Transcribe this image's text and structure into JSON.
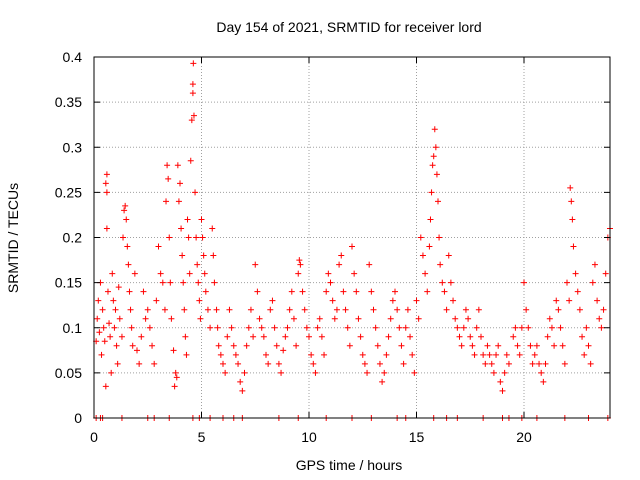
{
  "chart_data": {
    "type": "scatter",
    "title": "Day 154 of 2021, SRMTID for receiver lord",
    "xlabel": "GPS time / hours",
    "ylabel": "SRMTID / TECUs",
    "xlim": [
      0,
      24
    ],
    "ylim": [
      0,
      0.4
    ],
    "x_ticks": [
      0,
      5,
      10,
      15,
      20
    ],
    "x_tick_labels": [
      "0",
      "5",
      "10",
      "15",
      "20"
    ],
    "y_ticks": [
      0,
      0.05,
      0.1,
      0.15,
      0.2,
      0.25,
      0.3,
      0.35,
      0.4
    ],
    "y_tick_labels": [
      "0",
      "0.05",
      "0.1",
      "0.15",
      "0.2",
      "0.25",
      "0.3",
      "0.35",
      "0.4"
    ],
    "grid": true,
    "marker": "plus",
    "marker_color": "#ff0000",
    "series": [
      {
        "name": "SRMTID",
        "points": [
          [
            0.1,
            0.0
          ],
          [
            0.3,
            0.0
          ],
          [
            0.4,
            0.0
          ],
          [
            1.3,
            0.0
          ],
          [
            2.5,
            0.0
          ],
          [
            2.8,
            0.0
          ],
          [
            3.5,
            0.0
          ],
          [
            4.6,
            0.0
          ],
          [
            4.9,
            0.0
          ],
          [
            5.4,
            0.0
          ],
          [
            6.0,
            0.0
          ],
          [
            6.5,
            0.0
          ],
          [
            6.9,
            0.0
          ],
          [
            8.6,
            0.0
          ],
          [
            9.5,
            0.0
          ],
          [
            10.8,
            0.0
          ],
          [
            12.0,
            0.0
          ],
          [
            12.9,
            0.0
          ],
          [
            14.1,
            0.0
          ],
          [
            14.5,
            0.0
          ],
          [
            15.8,
            0.0
          ],
          [
            16.4,
            0.0
          ],
          [
            16.9,
            0.0
          ],
          [
            18.1,
            0.0
          ],
          [
            19.0,
            0.0
          ],
          [
            19.3,
            0.0
          ],
          [
            19.9,
            0.0
          ],
          [
            20.6,
            0.0
          ],
          [
            21.9,
            0.0
          ],
          [
            23.0,
            0.0
          ],
          [
            23.9,
            0.0
          ],
          [
            0.1,
            0.085
          ],
          [
            0.15,
            0.11
          ],
          [
            0.2,
            0.13
          ],
          [
            0.25,
            0.095
          ],
          [
            0.3,
            0.15
          ],
          [
            0.35,
            0.07
          ],
          [
            0.4,
            0.12
          ],
          [
            0.45,
            0.1
          ],
          [
            0.5,
            0.085
          ],
          [
            0.55,
            0.035
          ],
          [
            0.55,
            0.26
          ],
          [
            0.6,
            0.27
          ],
          [
            0.6,
            0.25
          ],
          [
            0.6,
            0.21
          ],
          [
            0.65,
            0.14
          ],
          [
            0.7,
            0.105
          ],
          [
            0.75,
            0.09
          ],
          [
            0.8,
            0.05
          ],
          [
            0.85,
            0.16
          ],
          [
            0.9,
            0.13
          ],
          [
            0.95,
            0.1
          ],
          [
            1.0,
            0.12
          ],
          [
            1.05,
            0.08
          ],
          [
            1.1,
            0.06
          ],
          [
            1.15,
            0.145
          ],
          [
            1.2,
            0.11
          ],
          [
            1.3,
            0.09
          ],
          [
            1.35,
            0.2
          ],
          [
            1.4,
            0.23
          ],
          [
            1.45,
            0.235
          ],
          [
            1.5,
            0.22
          ],
          [
            1.55,
            0.19
          ],
          [
            1.6,
            0.17
          ],
          [
            1.65,
            0.14
          ],
          [
            1.7,
            0.12
          ],
          [
            1.75,
            0.1
          ],
          [
            1.8,
            0.08
          ],
          [
            1.9,
            0.16
          ],
          [
            2.0,
            0.075
          ],
          [
            2.1,
            0.06
          ],
          [
            2.2,
            0.09
          ],
          [
            2.3,
            0.14
          ],
          [
            2.4,
            0.11
          ],
          [
            2.5,
            0.12
          ],
          [
            2.6,
            0.1
          ],
          [
            2.7,
            0.08
          ],
          [
            2.8,
            0.06
          ],
          [
            2.9,
            0.13
          ],
          [
            3.0,
            0.19
          ],
          [
            3.1,
            0.16
          ],
          [
            3.2,
            0.15
          ],
          [
            3.3,
            0.12
          ],
          [
            3.35,
            0.24
          ],
          [
            3.4,
            0.28
          ],
          [
            3.45,
            0.265
          ],
          [
            3.5,
            0.2
          ],
          [
            3.55,
            0.15
          ],
          [
            3.6,
            0.11
          ],
          [
            3.7,
            0.075
          ],
          [
            3.75,
            0.035
          ],
          [
            3.8,
            0.05
          ],
          [
            3.85,
            0.045
          ],
          [
            3.9,
            0.28
          ],
          [
            3.95,
            0.24
          ],
          [
            4.0,
            0.26
          ],
          [
            4.05,
            0.21
          ],
          [
            4.1,
            0.18
          ],
          [
            4.15,
            0.15
          ],
          [
            4.2,
            0.12
          ],
          [
            4.25,
            0.09
          ],
          [
            4.3,
            0.07
          ],
          [
            4.35,
            0.22
          ],
          [
            4.4,
            0.2
          ],
          [
            4.45,
            0.16
          ],
          [
            4.5,
            0.285
          ],
          [
            4.55,
            0.33
          ],
          [
            4.6,
            0.36
          ],
          [
            4.6,
            0.37
          ],
          [
            4.62,
            0.393
          ],
          [
            4.65,
            0.335
          ],
          [
            4.7,
            0.25
          ],
          [
            4.75,
            0.2
          ],
          [
            4.8,
            0.17
          ],
          [
            4.85,
            0.15
          ],
          [
            4.9,
            0.13
          ],
          [
            4.95,
            0.11
          ],
          [
            5.0,
            0.22
          ],
          [
            5.05,
            0.2
          ],
          [
            5.1,
            0.18
          ],
          [
            5.15,
            0.16
          ],
          [
            5.2,
            0.14
          ],
          [
            5.3,
            0.12
          ],
          [
            5.4,
            0.1
          ],
          [
            5.5,
            0.21
          ],
          [
            5.55,
            0.18
          ],
          [
            5.6,
            0.15
          ],
          [
            5.7,
            0.12
          ],
          [
            5.75,
            0.1
          ],
          [
            5.8,
            0.08
          ],
          [
            5.9,
            0.07
          ],
          [
            6.0,
            0.06
          ],
          [
            6.1,
            0.05
          ],
          [
            6.2,
            0.09
          ],
          [
            6.3,
            0.12
          ],
          [
            6.4,
            0.1
          ],
          [
            6.5,
            0.08
          ],
          [
            6.6,
            0.07
          ],
          [
            6.7,
            0.06
          ],
          [
            6.8,
            0.04
          ],
          [
            6.9,
            0.03
          ],
          [
            7.0,
            0.05
          ],
          [
            7.1,
            0.08
          ],
          [
            7.2,
            0.1
          ],
          [
            7.3,
            0.12
          ],
          [
            7.4,
            0.09
          ],
          [
            7.5,
            0.17
          ],
          [
            7.6,
            0.14
          ],
          [
            7.7,
            0.11
          ],
          [
            7.8,
            0.1
          ],
          [
            7.9,
            0.09
          ],
          [
            8.0,
            0.07
          ],
          [
            8.1,
            0.06
          ],
          [
            8.2,
            0.12
          ],
          [
            8.3,
            0.13
          ],
          [
            8.4,
            0.1
          ],
          [
            8.5,
            0.08
          ],
          [
            8.6,
            0.06
          ],
          [
            8.7,
            0.05
          ],
          [
            8.8,
            0.075
          ],
          [
            8.9,
            0.09
          ],
          [
            9.0,
            0.1
          ],
          [
            9.1,
            0.12
          ],
          [
            9.2,
            0.14
          ],
          [
            9.3,
            0.11
          ],
          [
            9.4,
            0.08
          ],
          [
            9.5,
            0.16
          ],
          [
            9.55,
            0.175
          ],
          [
            9.6,
            0.17
          ],
          [
            9.7,
            0.14
          ],
          [
            9.8,
            0.12
          ],
          [
            9.9,
            0.1
          ],
          [
            10.0,
            0.09
          ],
          [
            10.1,
            0.07
          ],
          [
            10.2,
            0.06
          ],
          [
            10.3,
            0.05
          ],
          [
            10.4,
            0.1
          ],
          [
            10.5,
            0.11
          ],
          [
            10.6,
            0.09
          ],
          [
            10.7,
            0.07
          ],
          [
            10.8,
            0.14
          ],
          [
            10.9,
            0.16
          ],
          [
            11.0,
            0.15
          ],
          [
            11.1,
            0.13
          ],
          [
            11.2,
            0.11
          ],
          [
            11.3,
            0.12
          ],
          [
            11.4,
            0.17
          ],
          [
            11.5,
            0.18
          ],
          [
            11.6,
            0.14
          ],
          [
            11.7,
            0.12
          ],
          [
            11.8,
            0.1
          ],
          [
            11.9,
            0.08
          ],
          [
            12.0,
            0.19
          ],
          [
            12.1,
            0.16
          ],
          [
            12.2,
            0.14
          ],
          [
            12.3,
            0.11
          ],
          [
            12.4,
            0.09
          ],
          [
            12.5,
            0.07
          ],
          [
            12.6,
            0.06
          ],
          [
            12.7,
            0.05
          ],
          [
            12.8,
            0.17
          ],
          [
            12.9,
            0.14
          ],
          [
            13.0,
            0.12
          ],
          [
            13.1,
            0.1
          ],
          [
            13.2,
            0.08
          ],
          [
            13.3,
            0.06
          ],
          [
            13.4,
            0.04
          ],
          [
            13.5,
            0.05
          ],
          [
            13.6,
            0.07
          ],
          [
            13.7,
            0.09
          ],
          [
            13.8,
            0.11
          ],
          [
            13.9,
            0.13
          ],
          [
            14.0,
            0.14
          ],
          [
            14.1,
            0.12
          ],
          [
            14.2,
            0.1
          ],
          [
            14.3,
            0.08
          ],
          [
            14.4,
            0.06
          ],
          [
            14.5,
            0.1
          ],
          [
            14.6,
            0.12
          ],
          [
            14.7,
            0.09
          ],
          [
            14.8,
            0.07
          ],
          [
            14.9,
            0.05
          ],
          [
            15.0,
            0.13
          ],
          [
            15.1,
            0.11
          ],
          [
            15.2,
            0.2
          ],
          [
            15.3,
            0.18
          ],
          [
            15.4,
            0.16
          ],
          [
            15.5,
            0.14
          ],
          [
            15.6,
            0.19
          ],
          [
            15.65,
            0.22
          ],
          [
            15.7,
            0.25
          ],
          [
            15.75,
            0.28
          ],
          [
            15.8,
            0.29
          ],
          [
            15.85,
            0.32
          ],
          [
            15.9,
            0.3
          ],
          [
            15.95,
            0.27
          ],
          [
            16.0,
            0.24
          ],
          [
            16.05,
            0.2
          ],
          [
            16.1,
            0.17
          ],
          [
            16.2,
            0.15
          ],
          [
            16.3,
            0.14
          ],
          [
            16.4,
            0.12
          ],
          [
            16.5,
            0.18
          ],
          [
            16.6,
            0.15
          ],
          [
            16.7,
            0.13
          ],
          [
            16.8,
            0.11
          ],
          [
            16.9,
            0.1
          ],
          [
            17.0,
            0.09
          ],
          [
            17.1,
            0.08
          ],
          [
            17.2,
            0.1
          ],
          [
            17.3,
            0.12
          ],
          [
            17.4,
            0.11
          ],
          [
            17.5,
            0.09
          ],
          [
            17.6,
            0.08
          ],
          [
            17.7,
            0.07
          ],
          [
            17.8,
            0.1
          ],
          [
            17.9,
            0.12
          ],
          [
            18.0,
            0.09
          ],
          [
            18.1,
            0.07
          ],
          [
            18.2,
            0.06
          ],
          [
            18.3,
            0.08
          ],
          [
            18.4,
            0.07
          ],
          [
            18.5,
            0.06
          ],
          [
            18.6,
            0.05
          ],
          [
            18.7,
            0.07
          ],
          [
            18.8,
            0.08
          ],
          [
            18.9,
            0.04
          ],
          [
            19.0,
            0.03
          ],
          [
            19.1,
            0.05
          ],
          [
            19.2,
            0.07
          ],
          [
            19.3,
            0.06
          ],
          [
            19.5,
            0.09
          ],
          [
            19.6,
            0.1
          ],
          [
            19.7,
            0.08
          ],
          [
            19.8,
            0.07
          ],
          [
            19.9,
            0.1
          ],
          [
            20.0,
            0.15
          ],
          [
            20.1,
            0.12
          ],
          [
            20.2,
            0.1
          ],
          [
            20.3,
            0.08
          ],
          [
            20.4,
            0.06
          ],
          [
            20.5,
            0.07
          ],
          [
            20.6,
            0.08
          ],
          [
            20.7,
            0.06
          ],
          [
            20.8,
            0.05
          ],
          [
            20.9,
            0.04
          ],
          [
            21.0,
            0.06
          ],
          [
            21.1,
            0.09
          ],
          [
            21.2,
            0.11
          ],
          [
            21.3,
            0.1
          ],
          [
            21.4,
            0.08
          ],
          [
            21.5,
            0.13
          ],
          [
            21.6,
            0.12
          ],
          [
            21.7,
            0.1
          ],
          [
            21.8,
            0.08
          ],
          [
            21.9,
            0.06
          ],
          [
            22.0,
            0.15
          ],
          [
            22.1,
            0.13
          ],
          [
            22.15,
            0.255
          ],
          [
            22.2,
            0.24
          ],
          [
            22.25,
            0.22
          ],
          [
            22.3,
            0.19
          ],
          [
            22.4,
            0.16
          ],
          [
            22.5,
            0.14
          ],
          [
            22.6,
            0.12
          ],
          [
            22.7,
            0.09
          ],
          [
            22.8,
            0.07
          ],
          [
            22.9,
            0.1
          ],
          [
            23.0,
            0.08
          ],
          [
            23.1,
            0.06
          ],
          [
            23.2,
            0.15
          ],
          [
            23.3,
            0.17
          ],
          [
            23.4,
            0.13
          ],
          [
            23.5,
            0.11
          ],
          [
            23.6,
            0.1
          ],
          [
            23.7,
            0.12
          ],
          [
            23.8,
            0.16
          ],
          [
            23.9,
            0.2
          ],
          [
            24.0,
            0.21
          ]
        ]
      }
    ]
  }
}
